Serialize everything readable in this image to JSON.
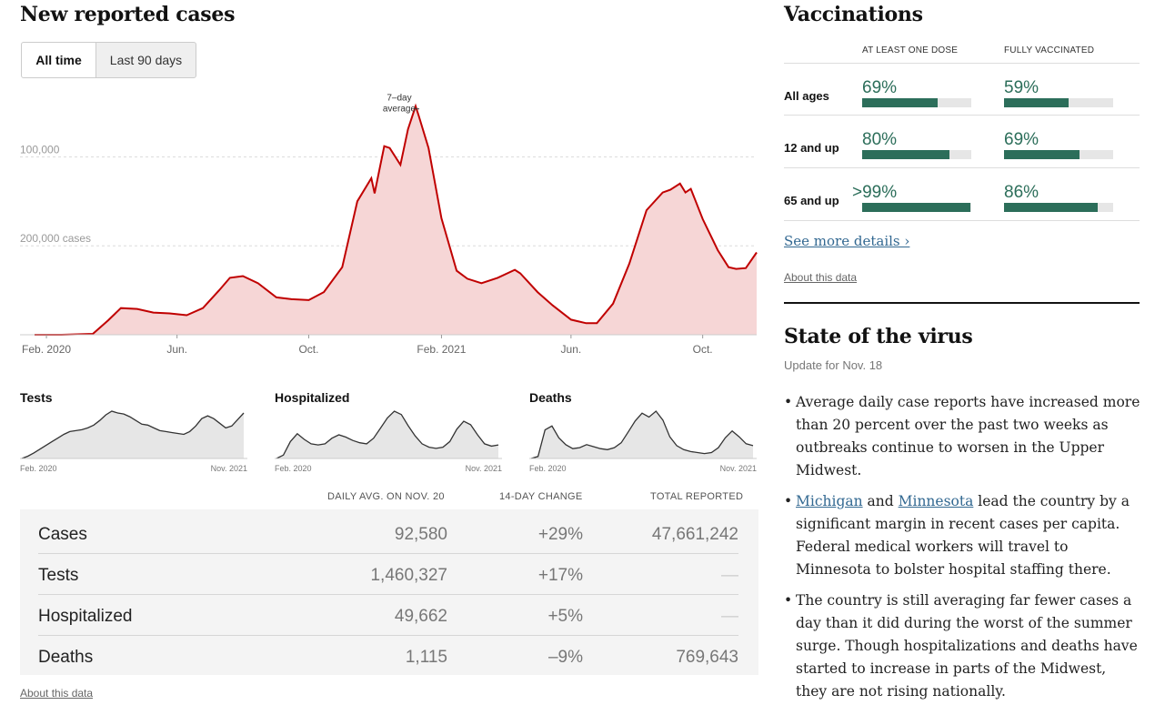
{
  "cases_panel": {
    "title": "New reported cases",
    "toggles": [
      "All time",
      "Last 90 days"
    ],
    "annotation": [
      "7–day",
      "average"
    ],
    "about": "About this data"
  },
  "chart_data": [
    {
      "type": "area",
      "title": "New reported cases",
      "x": [
        "2020-01-21",
        "2020-02-15",
        "2020-03-15",
        "2020-03-29",
        "2020-04-10",
        "2020-04-25",
        "2020-05-10",
        "2020-05-25",
        "2020-06-10",
        "2020-06-25",
        "2020-07-10",
        "2020-07-20",
        "2020-08-01",
        "2020-08-15",
        "2020-09-01",
        "2020-09-15",
        "2020-10-01",
        "2020-10-15",
        "2020-11-01",
        "2020-11-15",
        "2020-11-28",
        "2020-12-01",
        "2020-12-10",
        "2020-12-15",
        "2020-12-25",
        "2021-01-01",
        "2021-01-08",
        "2021-01-11",
        "2021-01-20",
        "2021-02-01",
        "2021-02-15",
        "2021-02-25",
        "2021-03-10",
        "2021-03-25",
        "2021-04-10",
        "2021-04-15",
        "2021-05-01",
        "2021-05-15",
        "2021-06-01",
        "2021-06-15",
        "2021-06-25",
        "2021-07-10",
        "2021-07-25",
        "2021-08-10",
        "2021-08-25",
        "2021-09-01",
        "2021-09-10",
        "2021-09-15",
        "2021-09-20",
        "2021-10-01",
        "2021-10-15",
        "2021-10-25",
        "2021-11-01",
        "2021-11-10",
        "2021-11-20"
      ],
      "series": [
        {
          "values": [
            0,
            0,
            1000,
            16000,
            30000,
            29000,
            25000,
            24000,
            22000,
            30000,
            50000,
            64000,
            66000,
            58000,
            42000,
            40000,
            39000,
            48000,
            76000,
            150000,
            176000,
            159000,
            212000,
            210000,
            191000,
            231000,
            257000,
            246000,
            210000,
            131000,
            72000,
            63000,
            58000,
            64000,
            73000,
            69000,
            48000,
            33000,
            17000,
            13000,
            13000,
            35000,
            80000,
            140000,
            160000,
            163000,
            170000,
            160000,
            164000,
            130000,
            95000,
            76000,
            74000,
            75000,
            92580
          ]
        }
      ],
      "xticks": [
        "Feb. 2020",
        "Jun.",
        "Oct.",
        "Feb. 2021",
        "Jun.",
        "Oct."
      ],
      "yticks": [
        "100,000",
        "200,000 cases"
      ],
      "ylim": [
        0,
        270000
      ],
      "grid": true
    },
    {
      "type": "area",
      "title": "Tests",
      "xlabels": [
        "Feb. 2020",
        "Nov. 2021"
      ],
      "series": [
        {
          "values": [
            0,
            5,
            12,
            20,
            28,
            36,
            44,
            52,
            58,
            60,
            62,
            66,
            72,
            82,
            94,
            102,
            98,
            96,
            90,
            82,
            74,
            72,
            66,
            60,
            58,
            56,
            54,
            52,
            58,
            70,
            86,
            92,
            86,
            76,
            66,
            70,
            84,
            98
          ]
        }
      ]
    },
    {
      "type": "area",
      "title": "Hospitalized",
      "xlabels": [
        "Feb. 2020",
        "Nov. 2021"
      ],
      "series": [
        {
          "values": [
            0,
            6,
            30,
            44,
            34,
            26,
            24,
            26,
            36,
            42,
            38,
            32,
            28,
            26,
            36,
            54,
            72,
            84,
            78,
            58,
            40,
            26,
            20,
            18,
            20,
            30,
            52,
            66,
            60,
            42,
            26,
            22,
            24
          ]
        }
      ]
    },
    {
      "type": "area",
      "title": "Deaths",
      "xlabels": [
        "Feb. 2020",
        "Nov. 2021"
      ],
      "series": [
        {
          "values": [
            0,
            4,
            58,
            66,
            42,
            28,
            20,
            22,
            28,
            24,
            20,
            18,
            22,
            32,
            54,
            76,
            92,
            84,
            96,
            78,
            44,
            26,
            18,
            14,
            12,
            10,
            12,
            22,
            42,
            56,
            44,
            30,
            26
          ]
        }
      ]
    }
  ],
  "stats": {
    "headers": [
      "DAILY AVG. ON NOV. 20",
      "14-DAY CHANGE",
      "TOTAL REPORTED"
    ],
    "rows": [
      {
        "label": "Cases",
        "avg": "92,580",
        "change": "+29%",
        "total": "47,661,242"
      },
      {
        "label": "Tests",
        "avg": "1,460,327",
        "change": "+17%",
        "total": "—"
      },
      {
        "label": "Hospitalized",
        "avg": "49,662",
        "change": "+5%",
        "total": "—"
      },
      {
        "label": "Deaths",
        "avg": "1,115",
        "change": "–9%",
        "total": "769,643"
      }
    ],
    "about": "About this data"
  },
  "vaccinations": {
    "title": "Vaccinations",
    "headers": [
      "AT LEAST ONE DOSE",
      "FULLY VACCINATED"
    ],
    "rows": [
      {
        "label": "All ages",
        "one_dose": "69%",
        "one_dose_frac": 0.69,
        "full": "59%",
        "full_frac": 0.59
      },
      {
        "label": "12 and up",
        "one_dose": "80%",
        "one_dose_frac": 0.8,
        "full": "69%",
        "full_frac": 0.69
      },
      {
        "label": "65 and up",
        "one_dose": ">99%",
        "one_dose_frac": 0.99,
        "full": "86%",
        "full_frac": 0.86
      }
    ],
    "see_more": "See more details ›",
    "about": "About this data",
    "bar_color": "#2c6e5a"
  },
  "virus": {
    "title": "State of the virus",
    "update": "Update for Nov. 18",
    "bullet1": "Average daily case reports have increased more than 20 percent over the past two weeks as outbreaks continue to worsen in the Upper Midwest.",
    "bullet2_link1": "Michigan",
    "bullet2_mid": " and ",
    "bullet2_link2": "Minnesota",
    "bullet2_rest": " lead the country by a significant margin in recent cases per capita. Federal medical workers will travel to Minnesota to bolster hospital staffing there.",
    "bullet3": "The country is still averaging far fewer cases a day than it did during the worst of the summer surge. Though hospitalizations and deaths have started to increase in parts of the Midwest, they are not rising nationally."
  },
  "colors": {
    "cases_line": "#c00000",
    "cases_fill": "#f6d6d6",
    "mini_line": "#333333",
    "mini_fill": "#e6e6e6",
    "link": "#326891"
  }
}
